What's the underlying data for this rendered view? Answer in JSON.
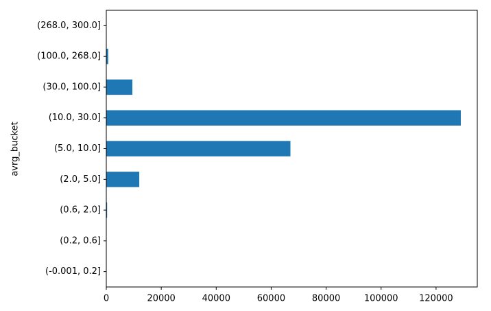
{
  "chart_data": {
    "type": "barh",
    "ylabel": "avrg_bucket",
    "categories": [
      "(-0.001, 0.2]",
      "(0.2, 0.6]",
      "(0.6, 2.0]",
      "(2.0, 5.0]",
      "(5.0, 10.0]",
      "(10.0, 30.0]",
      "(30.0, 100.0]",
      "(100.0, 268.0]",
      "(268.0, 300.0]"
    ],
    "values": [
      20,
      50,
      300,
      12000,
      67000,
      129000,
      9500,
      700,
      0
    ],
    "color": "#1f77b4",
    "xlim": [
      0,
      135000
    ],
    "xticks": [
      0,
      20000,
      40000,
      60000,
      80000,
      100000,
      120000
    ],
    "grid": false
  }
}
